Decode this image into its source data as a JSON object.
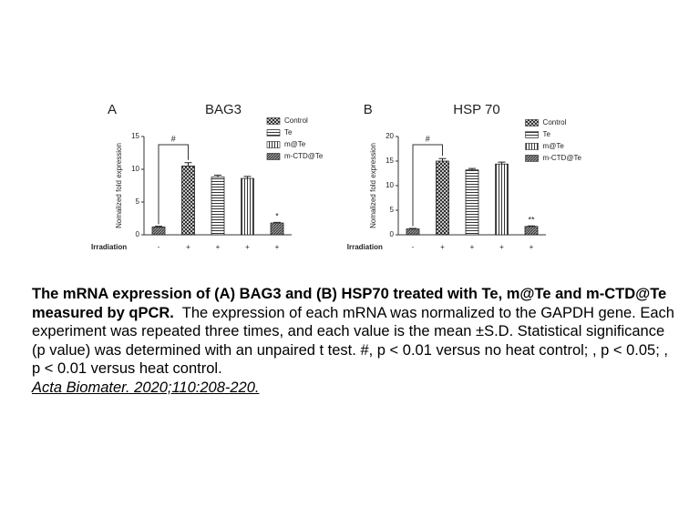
{
  "chart_data": [
    {
      "type": "bar",
      "panel": "A",
      "title": "BAG3",
      "ylabel": "Nomalized fold expression",
      "xlabel": "Irradiation",
      "categories": [
        "-",
        "+",
        "+",
        "+",
        "+"
      ],
      "values": [
        1.2,
        10.5,
        8.8,
        8.6,
        1.8
      ],
      "errors": [
        0.1,
        0.5,
        0.3,
        0.3,
        0.1
      ],
      "ylim": [
        0,
        15
      ],
      "yticks": [
        0,
        5,
        10,
        15
      ],
      "legend": [
        "Control",
        "Te",
        "m@Te",
        "m-CTD@Te"
      ],
      "bracket_label": "#",
      "significance_label": "*"
    },
    {
      "type": "bar",
      "panel": "B",
      "title": "HSP 70",
      "ylabel": "Nomalized fold expression",
      "xlabel": "Irradiation",
      "categories": [
        "-",
        "+",
        "+",
        "+",
        "+"
      ],
      "values": [
        1.2,
        15,
        13.2,
        14.4,
        1.7
      ],
      "errors": [
        0.1,
        0.5,
        0.3,
        0.4,
        0.1
      ],
      "ylim": [
        0,
        20
      ],
      "yticks": [
        0,
        5,
        10,
        15,
        20
      ],
      "legend": [
        "Control",
        "Te",
        "m@Te",
        "m-CTD@Te"
      ],
      "bracket_label": "#",
      "significance_label": "**"
    }
  ],
  "caption": {
    "bold": "The mRNA expression of (A) BAG3 and (B) HSP70 treated with Te, m@Te and m-CTD@Te measured by qPCR.",
    "text": "The expression of each mRNA was normalized to the GAPDH gene. Each experiment was repeated three times, and each value is the mean ±S.D. Statistical significance (p value) was determined with an unpaired t test. #, p < 0.01 versus no heat control;  , p < 0.05;   , p < 0.01 versus heat control.",
    "citation": "Acta Biomater. 2020;110:208-220."
  }
}
